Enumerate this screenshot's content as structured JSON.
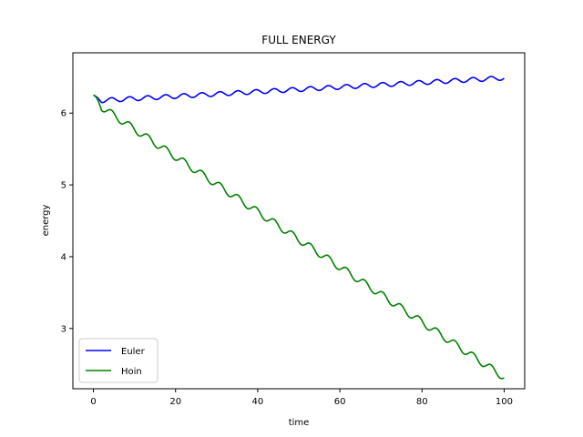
{
  "chart_data": {
    "type": "line",
    "title": "FULL ENERGY",
    "xlabel": "time",
    "ylabel": "energy",
    "xlim": [
      -5,
      105
    ],
    "ylim": [
      2.16,
      6.84
    ],
    "xticks": [
      0,
      20,
      40,
      60,
      80,
      100
    ],
    "yticks": [
      3,
      4,
      5,
      6
    ],
    "grid": false,
    "legend_position": "lower-left",
    "series": [
      {
        "name": "Euler",
        "color": "#0000ff",
        "trend_start": 6.2,
        "trend_end": 6.52,
        "start_value": 6.25,
        "end_value": 6.5,
        "wave_amplitude": 0.03,
        "wave_period": 4.4
      },
      {
        "name": "Hoin",
        "color": "#008000",
        "trend_start": 6.21,
        "trend_end": 2.37,
        "start_value": 6.25,
        "end_value": 2.35,
        "wave_amplitude": 0.05,
        "wave_period": 4.4
      }
    ]
  }
}
